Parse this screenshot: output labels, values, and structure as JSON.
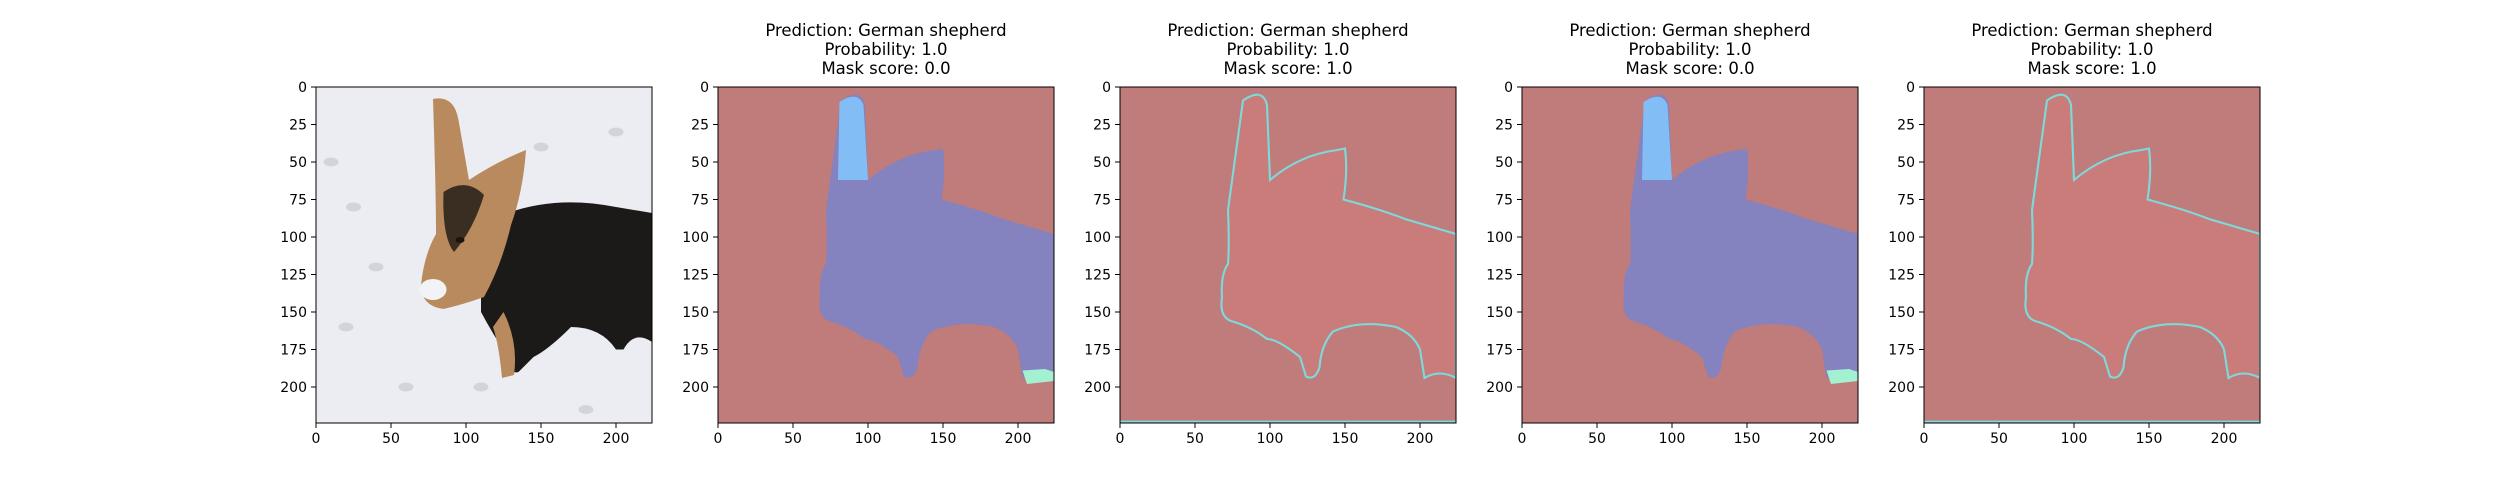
{
  "chart_data": [
    {
      "type": "image",
      "title": [],
      "image_content": "photo of a German shepherd dog in snow",
      "x_ticks": [
        0,
        50,
        100,
        150,
        200
      ],
      "y_ticks": [
        0,
        25,
        50,
        75,
        100,
        125,
        150,
        175,
        200
      ],
      "xlim": [
        0,
        224
      ],
      "ylim": [
        224,
        0
      ]
    },
    {
      "type": "heatmap",
      "title": [
        "Prediction: German shepherd",
        "Probability: 1.0",
        "Mask score: 0.0"
      ],
      "prediction": "German shepherd",
      "probability": 1.0,
      "mask_score": 0.0,
      "overlay": "segmentation mask",
      "x_ticks": [
        0,
        50,
        100,
        150,
        200
      ],
      "y_ticks": [
        0,
        25,
        50,
        75,
        100,
        125,
        150,
        175,
        200
      ],
      "xlim": [
        0,
        224
      ],
      "ylim": [
        224,
        0
      ]
    },
    {
      "type": "heatmap",
      "title": [
        "Prediction: German shepherd",
        "Probability: 1.0",
        "Mask score: 1.0"
      ],
      "prediction": "German shepherd",
      "probability": 1.0,
      "mask_score": 1.0,
      "overlay": "dog outline mask",
      "x_ticks": [
        0,
        50,
        100,
        150,
        200
      ],
      "y_ticks": [
        0,
        25,
        50,
        75,
        100,
        125,
        150,
        175,
        200
      ],
      "xlim": [
        0,
        224
      ],
      "ylim": [
        224,
        0
      ]
    },
    {
      "type": "heatmap",
      "title": [
        "Prediction: German shepherd",
        "Probability: 1.0",
        "Mask score: 0.0"
      ],
      "prediction": "German shepherd",
      "probability": 1.0,
      "mask_score": 0.0,
      "overlay": "segmentation mask",
      "x_ticks": [
        0,
        50,
        100,
        150,
        200
      ],
      "y_ticks": [
        0,
        25,
        50,
        75,
        100,
        125,
        150,
        175,
        200
      ],
      "xlim": [
        0,
        224
      ],
      "ylim": [
        224,
        0
      ]
    },
    {
      "type": "heatmap",
      "title": [
        "Prediction: German shepherd",
        "Probability: 1.0",
        "Mask score: 1.0"
      ],
      "prediction": "German shepherd",
      "probability": 1.0,
      "mask_score": 1.0,
      "overlay": "dog outline mask",
      "x_ticks": [
        0,
        50,
        100,
        150,
        200
      ],
      "y_ticks": [
        0,
        25,
        50,
        75,
        100,
        125,
        150,
        175,
        200
      ],
      "xlim": [
        0,
        224
      ],
      "ylim": [
        224,
        0
      ]
    }
  ],
  "colors": {
    "background_red": "#bf7c7b",
    "body_blue": "#8482bf",
    "ear_lightblue": "#83bdf6",
    "foot_green": "#a3f0d3",
    "outline_red": "#c97c79",
    "outline_cyan": "#7ed9dc",
    "snow": "#ecedf2",
    "dog_black": "#1c1a18",
    "dog_tan": "#b98a5d"
  }
}
